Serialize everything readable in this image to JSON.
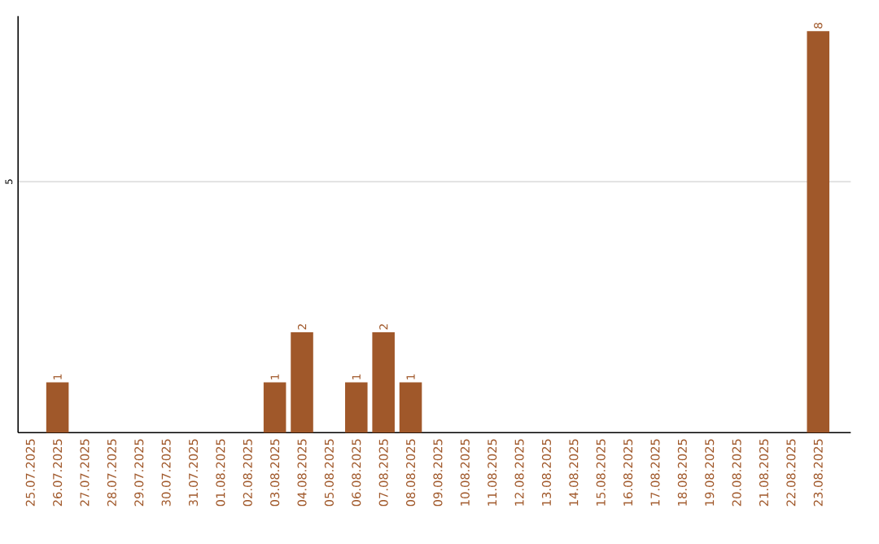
{
  "chart_data": {
    "type": "bar",
    "categories": [
      "25.07.2025",
      "26.07.2025",
      "27.07.2025",
      "28.07.2025",
      "29.07.2025",
      "30.07.2025",
      "31.07.2025",
      "01.08.2025",
      "02.08.2025",
      "03.08.2025",
      "04.08.2025",
      "05.08.2025",
      "06.08.2025",
      "07.08.2025",
      "08.08.2025",
      "09.08.2025",
      "10.08.2025",
      "11.08.2025",
      "12.08.2025",
      "13.08.2025",
      "14.08.2025",
      "15.08.2025",
      "16.08.2025",
      "17.08.2025",
      "18.08.2025",
      "19.08.2025",
      "20.08.2025",
      "21.08.2025",
      "22.08.2025",
      "23.08.2025"
    ],
    "values": [
      0,
      1,
      0,
      0,
      0,
      0,
      0,
      0,
      0,
      1,
      2,
      0,
      1,
      2,
      1,
      0,
      0,
      0,
      0,
      0,
      0,
      0,
      0,
      0,
      0,
      0,
      0,
      0,
      0,
      8
    ],
    "value_labels": [
      null,
      "1",
      null,
      null,
      null,
      null,
      null,
      null,
      null,
      "1",
      "2",
      null,
      "1",
      "2",
      "1",
      null,
      null,
      null,
      null,
      null,
      null,
      null,
      null,
      null,
      null,
      null,
      null,
      null,
      null,
      "8"
    ],
    "color": "#a0582a",
    "ylim": [
      0,
      8.3
    ],
    "yticks": [
      5
    ],
    "grid": "y"
  }
}
